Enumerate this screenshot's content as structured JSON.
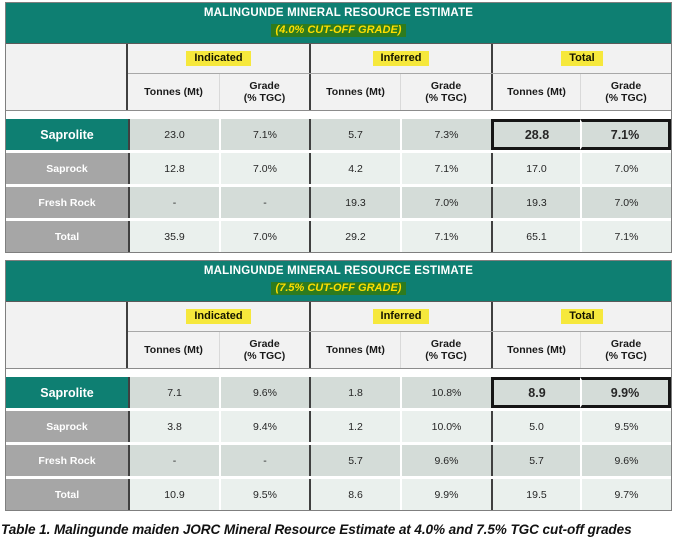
{
  "columns": {
    "tonnes": "Tonnes (Mt)",
    "grade": "Grade\n(% TGC)"
  },
  "tables": [
    {
      "title": "MALINGUNDE MINERAL RESOURCE ESTIMATE",
      "subtitle": "(4.0% CUT-OFF GRADE)",
      "groups": [
        "Indicated",
        "Inferred",
        "Total"
      ],
      "rows": [
        {
          "label": "Saprolite",
          "values": [
            "23.0",
            "7.1%",
            "5.7",
            "7.3%",
            "28.8",
            "7.1%"
          ]
        },
        {
          "label": "Saprock",
          "values": [
            "12.8",
            "7.0%",
            "4.2",
            "7.1%",
            "17.0",
            "7.0%"
          ]
        },
        {
          "label": "Fresh Rock",
          "values": [
            "-",
            "-",
            "19.3",
            "7.0%",
            "19.3",
            "7.0%"
          ]
        },
        {
          "label": "Total",
          "values": [
            "35.9",
            "7.0%",
            "29.2",
            "7.1%",
            "65.1",
            "7.1%"
          ]
        }
      ]
    },
    {
      "title": "MALINGUNDE MINERAL RESOURCE ESTIMATE",
      "subtitle": "(7.5% CUT-OFF GRADE)",
      "groups": [
        "Indicated",
        "Inferred",
        "Total"
      ],
      "rows": [
        {
          "label": "Saprolite",
          "values": [
            "7.1",
            "9.6%",
            "1.8",
            "10.8%",
            "8.9",
            "9.9%"
          ]
        },
        {
          "label": "Saprock",
          "values": [
            "3.8",
            "9.4%",
            "1.2",
            "10.0%",
            "5.0",
            "9.5%"
          ]
        },
        {
          "label": "Fresh Rock",
          "values": [
            "-",
            "-",
            "5.7",
            "9.6%",
            "5.7",
            "9.6%"
          ]
        },
        {
          "label": "Total",
          "values": [
            "10.9",
            "9.5%",
            "8.6",
            "9.9%",
            "19.5",
            "9.7%"
          ]
        }
      ]
    }
  ],
  "caption": "Table 1. Malingunde maiden JORC Mineral Resource Estimate at 4.0% and 7.5% TGC cut-off grades",
  "colors": {
    "teal": "#0E7F72",
    "yellow_highlight": "#F6E83C",
    "subtitle_highlight": "#2E7B1E",
    "subtitle_text": "#FFDE00",
    "label_gray": "#A6A6A6",
    "row_dark": "#D4DCD8",
    "row_light": "#EAF0ED"
  }
}
